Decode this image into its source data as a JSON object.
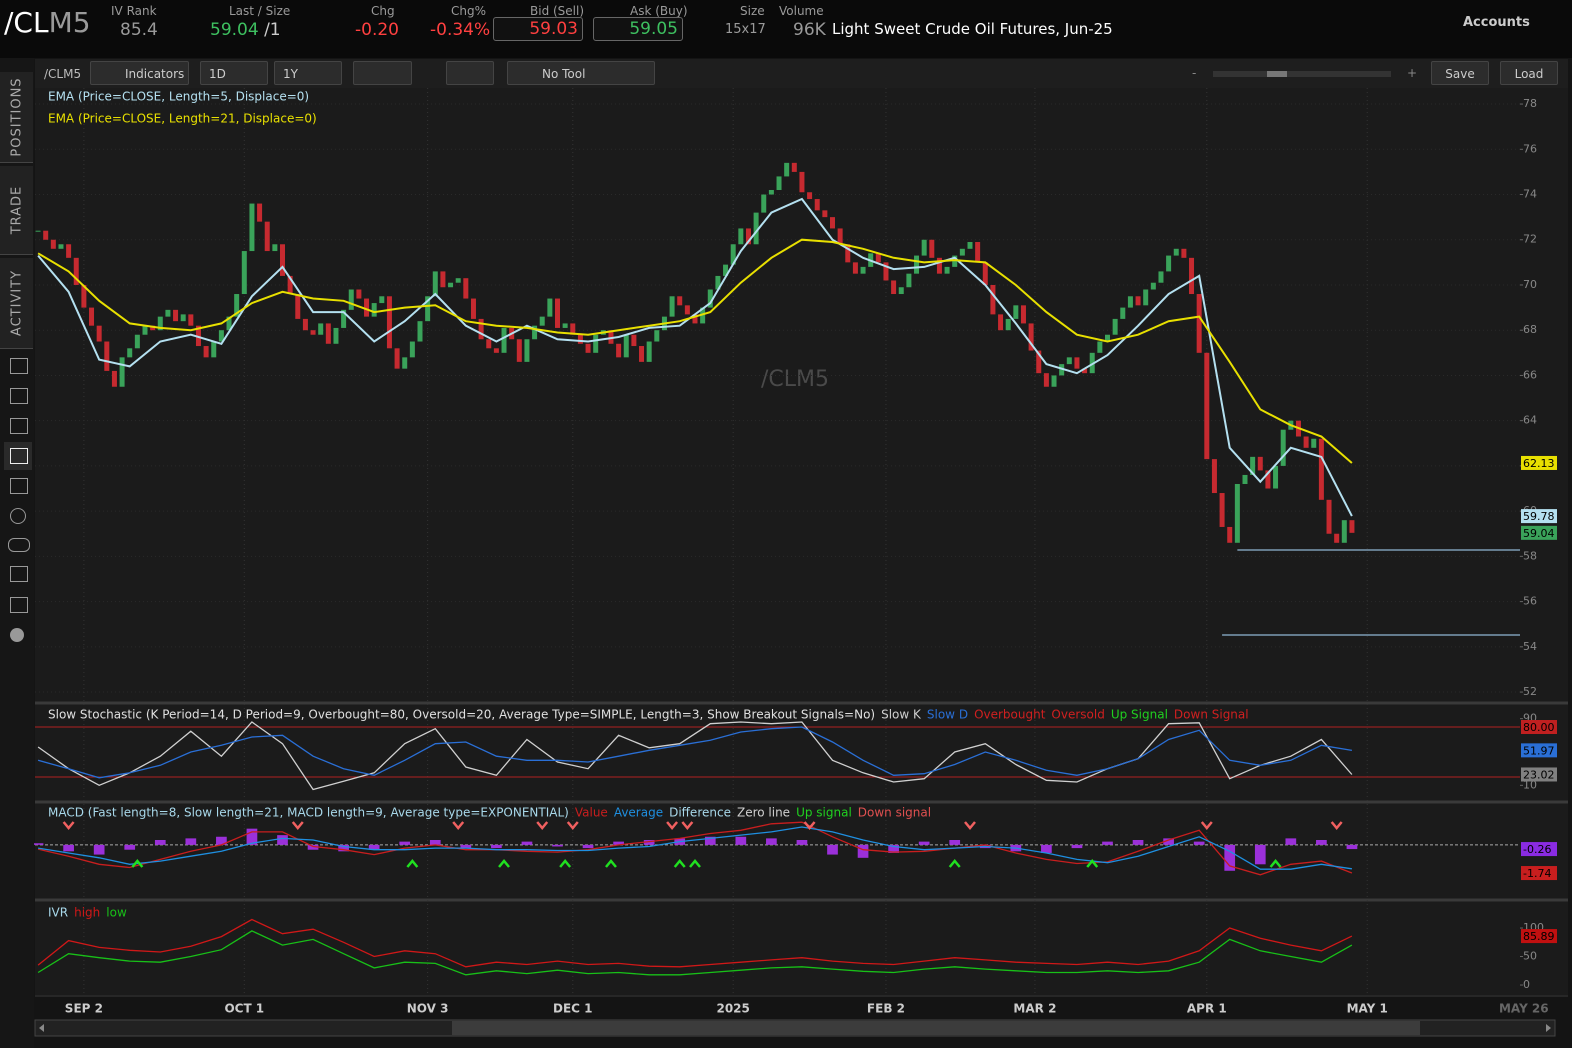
{
  "header": {
    "symbol_root": "/CL",
    "symbol_suffix": "M5",
    "iv_rank_label": "IV Rank",
    "iv_rank": "85.4",
    "last_label": "Last / Size",
    "last": "59.04",
    "last_size": "/1",
    "chg_label": "Chg",
    "chg": "-0.20",
    "chg_pct_label": "Chg%",
    "chg_pct": "-0.34%",
    "bid_label": "Bid (Sell)",
    "bid": "59.03",
    "ask_label": "Ask (Buy)",
    "ask": "59.05",
    "size_label": "Size",
    "size": "15x17",
    "volume_label": "Volume",
    "volume": "96K",
    "description": "Light Sweet Crude Oil Futures, Jun-25",
    "accounts": "Accounts"
  },
  "toolbar": {
    "symbol": "/CLM5",
    "indicators": "Indicators",
    "interval": "1D",
    "range": "1Y",
    "tool": "No Tool",
    "zoom_out": "-",
    "zoom_in": "+",
    "save": "Save",
    "load": "Load"
  },
  "side_tabs": [
    "POSITIONS",
    "TRADE",
    "ACTIVITY"
  ],
  "chart_data": [
    {
      "type": "candlestick",
      "title": "/CLM5",
      "up_color": "#3aa35a",
      "down_color": "#c62a30",
      "values": [
        72.4,
        72.0,
        71.6,
        71.8,
        71.2,
        70.0,
        69.0,
        68.2,
        67.5,
        66.2,
        65.5,
        66.8,
        67.2,
        67.8,
        68.2,
        68.0,
        68.6,
        68.9,
        68.4,
        68.7,
        68.2,
        67.3,
        66.8,
        67.5,
        68.0,
        68.6,
        69.6,
        71.5,
        73.6,
        72.8,
        71.5,
        71.8,
        70.4,
        69.6,
        68.5,
        68.0,
        67.8,
        68.3,
        67.4,
        68.1,
        68.9,
        69.8,
        69.4,
        68.6,
        69.2,
        69.5,
        67.2,
        66.3,
        66.8,
        67.5,
        68.4,
        69.5,
        70.6,
        69.9,
        70.1,
        70.3,
        69.4,
        68.5,
        67.6,
        67.2,
        67.0,
        68.1,
        67.6,
        66.6,
        67.6,
        68.2,
        68.6,
        69.4,
        68.1,
        68.3,
        67.8,
        67.4,
        67.0,
        67.8,
        68.0,
        67.4,
        66.8,
        67.8,
        67.3,
        66.6,
        67.5,
        68.0,
        68.6,
        69.5,
        69.1,
        68.7,
        68.3,
        69.0,
        69.8,
        70.4,
        70.9,
        71.8,
        72.5,
        71.8,
        73.2,
        74.0,
        74.2,
        74.8,
        75.4,
        75.0,
        74.1,
        73.8,
        73.3,
        73.0,
        72.5,
        71.8,
        71.0,
        70.5,
        70.8,
        71.4,
        71.0,
        70.2,
        69.6,
        69.9,
        70.5,
        71.3,
        72.0,
        71.2,
        70.5,
        70.8,
        71.3,
        71.6,
        71.9,
        71.0,
        70.0,
        68.7,
        68.0,
        68.5,
        69.1,
        68.3,
        67.1,
        66.1,
        65.5,
        66.0,
        66.5,
        66.8,
        66.3,
        66.1,
        67.0,
        67.5,
        67.8,
        68.5,
        69.0,
        69.5,
        69.1,
        69.8,
        70.1,
        70.6,
        71.3,
        71.6,
        71.2,
        69.6,
        67.0,
        62.3,
        60.8,
        59.3,
        58.6,
        61.2,
        61.6,
        62.4,
        61.8,
        61.0,
        62.0,
        63.6,
        64.0,
        63.3,
        62.8,
        63.2,
        60.5,
        59.0,
        58.6,
        59.6,
        59.04
      ],
      "series": [
        {
          "name": "EMA (Price=CLOSE, Length=5, Displace=0)",
          "color": "#b4e0f0",
          "x": [
            0,
            4,
            8,
            12,
            16,
            20,
            24,
            28,
            32,
            36,
            40,
            44,
            48,
            52,
            56,
            60,
            64,
            68,
            72,
            76,
            80,
            84,
            88,
            92,
            96,
            100,
            104,
            108,
            112,
            116,
            120,
            124,
            128,
            132,
            136,
            140,
            144,
            148,
            152,
            156,
            160,
            164,
            168,
            172
          ],
          "values": [
            71.3,
            69.7,
            66.7,
            66.4,
            67.5,
            67.8,
            67.4,
            69.5,
            70.8,
            68.8,
            68.8,
            67.5,
            68.4,
            69.6,
            68.2,
            67.5,
            68.2,
            67.6,
            67.5,
            67.7,
            68.1,
            68.2,
            69.2,
            71.5,
            73.2,
            73.8,
            72.0,
            71.2,
            70.7,
            70.8,
            71.2,
            70.0,
            68.3,
            66.5,
            66.1,
            66.9,
            68.2,
            69.6,
            70.4,
            62.8,
            61.3,
            62.8,
            62.4,
            59.78
          ]
        },
        {
          "name": "EMA (Price=CLOSE, Length=21, Displace=0)",
          "color": "#e8e000",
          "x": [
            0,
            4,
            8,
            12,
            16,
            20,
            24,
            28,
            32,
            36,
            40,
            44,
            48,
            52,
            56,
            60,
            64,
            68,
            72,
            76,
            80,
            84,
            88,
            92,
            96,
            100,
            104,
            108,
            112,
            116,
            120,
            124,
            128,
            132,
            136,
            140,
            144,
            148,
            152,
            156,
            160,
            164,
            168,
            172
          ],
          "values": [
            71.4,
            70.6,
            69.3,
            68.3,
            68.1,
            68.0,
            68.3,
            69.2,
            69.7,
            69.4,
            69.3,
            68.8,
            69.0,
            69.1,
            68.4,
            68.2,
            68.1,
            67.9,
            67.8,
            68.0,
            68.2,
            68.4,
            68.8,
            70.1,
            71.2,
            72.0,
            71.9,
            71.6,
            71.2,
            71.0,
            71.1,
            71.0,
            70.0,
            68.8,
            67.8,
            67.5,
            67.8,
            68.4,
            68.6,
            66.6,
            64.5,
            63.8,
            63.3,
            62.13
          ]
        }
      ],
      "hlines": [
        {
          "value": 58.28,
          "x": 157,
          "color": "#7d9db5"
        },
        {
          "value": 54.52,
          "x": 155,
          "color": "#7d9db5"
        }
      ],
      "markers": [
        {
          "value": 62.13,
          "color": "#e8e000"
        },
        {
          "value": 59.78,
          "color": "#b4e0f0"
        },
        {
          "value": 59.04,
          "color": "#3aa35a"
        }
      ],
      "ylim": [
        51.56,
        78.71
      ],
      "yticks": [
        52,
        54,
        56,
        58,
        60,
        62,
        64,
        66,
        68,
        70,
        72,
        74,
        76,
        78
      ],
      "xlim": [
        -0.4,
        194
      ],
      "xticks": [
        {
          "value": 6,
          "label": "SEP 2"
        },
        {
          "value": 27,
          "label": "OCT 1"
        },
        {
          "value": 51,
          "label": "NOV 3"
        },
        {
          "value": 70,
          "label": "DEC 1"
        },
        {
          "value": 91,
          "label": "2025"
        },
        {
          "value": 111,
          "label": "FEB 2"
        },
        {
          "value": 130.5,
          "label": "MAR 2"
        },
        {
          "value": 153,
          "label": "APR 1"
        },
        {
          "value": 174,
          "label": "MAY 1"
        },
        {
          "value": 194.5,
          "label": "MAY 26"
        }
      ],
      "grid": true
    },
    {
      "type": "line",
      "title": "Slow Stochastic (K Period=14, D Period=9, Overbought=80, Oversold=20, Average Type=SIMPLE, Length=3, Show Breakout Signals=No)",
      "x": [
        0,
        4,
        8,
        12,
        16,
        20,
        24,
        28,
        32,
        36,
        40,
        44,
        48,
        52,
        56,
        60,
        64,
        68,
        72,
        76,
        80,
        84,
        88,
        92,
        96,
        100,
        104,
        108,
        112,
        116,
        120,
        124,
        128,
        132,
        136,
        140,
        144,
        148,
        152,
        156,
        160,
        164,
        168,
        172
      ],
      "series": [
        {
          "name": "Slow K",
          "color": "#d0d0d0",
          "values": [
            56,
            30,
            10,
            25,
            45,
            75,
            45,
            86,
            60,
            5,
            15,
            25,
            60,
            78,
            32,
            22,
            65,
            38,
            30,
            70,
            55,
            60,
            84,
            86,
            84,
            86,
            40,
            25,
            14,
            18,
            50,
            60,
            35,
            16,
            14,
            30,
            42,
            84,
            85,
            18,
            34,
            45,
            65,
            23.02
          ]
        },
        {
          "name": "Slow D",
          "color": "#2a6fd6",
          "values": [
            40,
            30,
            19,
            25,
            34,
            50,
            58,
            68,
            70,
            45,
            30,
            22,
            40,
            60,
            62,
            45,
            40,
            40,
            38,
            45,
            52,
            58,
            64,
            74,
            78,
            80,
            62,
            40,
            22,
            24,
            35,
            50,
            40,
            28,
            22,
            30,
            42,
            65,
            76,
            40,
            34,
            40,
            58,
            51.97
          ]
        }
      ],
      "legend_extra": [
        {
          "name": "Overbought",
          "color": "#d02020"
        },
        {
          "name": "Oversold",
          "color": "#d02020"
        },
        {
          "name": "Up Signal",
          "color": "#20d020"
        },
        {
          "name": "Down Signal",
          "color": "#d02020"
        }
      ],
      "levels": [
        {
          "value": 80,
          "color": "#b02020"
        },
        {
          "value": 20,
          "color": "#b02020"
        }
      ],
      "markers": [
        {
          "value": 80,
          "label": "80.00",
          "color": "#c02020"
        },
        {
          "value": 51.97,
          "color": "#2a6fd6"
        },
        {
          "value": 23.02,
          "color": "#808080"
        }
      ],
      "ylim": [
        -7.6,
        106.4
      ],
      "yticks": [
        10,
        90
      ]
    },
    {
      "type": "macd",
      "title": "MACD (Fast length=8, Slow length=21, MACD length=9, Average type=EXPONENTIAL)",
      "x": [
        0,
        4,
        8,
        12,
        16,
        20,
        24,
        28,
        32,
        36,
        40,
        44,
        48,
        52,
        56,
        60,
        64,
        68,
        72,
        76,
        80,
        84,
        88,
        92,
        96,
        100,
        104,
        108,
        112,
        116,
        120,
        124,
        128,
        132,
        136,
        140,
        144,
        148,
        152,
        156,
        160,
        164,
        168,
        172
      ],
      "series": [
        {
          "name": "Value",
          "color": "#c81e1e",
          "values": [
            -0.26,
            -0.7,
            -1.2,
            -1.4,
            -0.9,
            -0.4,
            0.0,
            0.8,
            0.8,
            -0.1,
            -0.3,
            -0.6,
            -0.2,
            0.0,
            -0.3,
            -0.3,
            -0.4,
            -0.45,
            -0.3,
            0.0,
            0.2,
            0.4,
            0.7,
            0.9,
            1.3,
            1.4,
            0.5,
            -0.3,
            -0.45,
            -0.4,
            -0.2,
            0.0,
            -0.5,
            -0.9,
            -1.15,
            -1.05,
            -0.4,
            0.3,
            0.9,
            -1.3,
            -1.85,
            -1.2,
            -1.0,
            -1.74
          ]
        },
        {
          "name": "Average",
          "color": "#1f8fe0",
          "values": [
            -0.2,
            -0.5,
            -0.8,
            -1.2,
            -1.0,
            -0.7,
            -0.4,
            0.1,
            0.4,
            0.3,
            -0.1,
            -0.3,
            -0.3,
            -0.2,
            -0.2,
            -0.3,
            -0.3,
            -0.35,
            -0.35,
            -0.2,
            -0.1,
            0.2,
            0.4,
            0.6,
            0.8,
            1.1,
            0.8,
            0.3,
            -0.1,
            -0.3,
            -0.2,
            -0.1,
            -0.2,
            -0.5,
            -0.9,
            -1.1,
            -0.7,
            -0.1,
            0.5,
            -0.4,
            -1.5,
            -1.5,
            -1.2,
            -1.48
          ]
        },
        {
          "name": "Difference",
          "color": "#9b30d9",
          "values": [
            0.1,
            -0.4,
            -0.6,
            -0.3,
            0.3,
            0.4,
            0.5,
            1.0,
            0.6,
            -0.3,
            -0.4,
            -0.3,
            0.2,
            0.3,
            -0.2,
            -0.2,
            0.2,
            -0.1,
            -0.2,
            0.2,
            0.3,
            0.4,
            0.5,
            0.5,
            0.4,
            0.3,
            -0.6,
            -0.8,
            -0.5,
            0.2,
            0.3,
            -0.2,
            -0.4,
            -0.5,
            -0.2,
            0.2,
            0.3,
            0.4,
            0.2,
            -1.6,
            -1.2,
            0.4,
            0.3,
            -0.26
          ]
        }
      ],
      "legend_extra": [
        {
          "name": "Zero line",
          "color": "#d0d0d0"
        },
        {
          "name": "Up signal",
          "color": "#20d020"
        },
        {
          "name": "Down signal",
          "color": "#e05050"
        }
      ],
      "up_signals": [
        13,
        49,
        61,
        69,
        75,
        84,
        86,
        120,
        138,
        162
      ],
      "down_signals": [
        4,
        34,
        55,
        66,
        70,
        83,
        85,
        101,
        122,
        153,
        170
      ],
      "markers": [
        {
          "value": -0.26,
          "color": "#8a2be2"
        },
        {
          "value": -1.74,
          "color": "#c81e1e"
        }
      ],
      "ylim": [
        -3.28,
        2.46
      ]
    },
    {
      "type": "line",
      "title": "IVR",
      "x": [
        0,
        4,
        8,
        12,
        16,
        20,
        24,
        28,
        32,
        36,
        40,
        44,
        48,
        52,
        56,
        60,
        64,
        68,
        72,
        76,
        80,
        84,
        88,
        92,
        96,
        100,
        104,
        108,
        112,
        116,
        120,
        124,
        128,
        132,
        136,
        140,
        144,
        148,
        152,
        156,
        160,
        164,
        168,
        172
      ],
      "series": [
        {
          "name": "high",
          "color": "#d01818",
          "values": [
            35,
            78,
            66,
            61,
            58,
            68,
            85,
            115,
            90,
            98,
            75,
            50,
            60,
            55,
            32,
            40,
            36,
            42,
            36,
            38,
            33,
            32,
            36,
            40,
            44,
            48,
            42,
            38,
            36,
            42,
            48,
            44,
            40,
            38,
            36,
            40,
            36,
            42,
            60,
            100,
            82,
            70,
            60,
            85.89
          ]
        },
        {
          "name": "low",
          "color": "#18c018",
          "values": [
            22,
            55,
            48,
            42,
            40,
            50,
            62,
            95,
            70,
            80,
            55,
            30,
            40,
            38,
            18,
            25,
            20,
            26,
            20,
            22,
            18,
            18,
            22,
            26,
            30,
            32,
            28,
            24,
            22,
            28,
            32,
            28,
            25,
            22,
            22,
            25,
            22,
            25,
            40,
            80,
            60,
            50,
            40,
            70
          ]
        }
      ],
      "markers": [
        {
          "value": 85.89,
          "color": "#c01010"
        }
      ],
      "ylim": [
        -17.5,
        143.9
      ],
      "yticks": [
        0,
        50,
        100
      ]
    }
  ]
}
